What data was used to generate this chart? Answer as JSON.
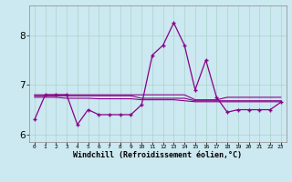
{
  "xlabel": "Windchill (Refroidissement éolien,°C)",
  "bg_color": "#cce8f0",
  "line_color": "#880088",
  "x_values": [
    0,
    1,
    2,
    3,
    4,
    5,
    6,
    7,
    8,
    9,
    10,
    11,
    12,
    13,
    14,
    15,
    16,
    17,
    18,
    19,
    20,
    21,
    22,
    23
  ],
  "y_main": [
    6.3,
    6.8,
    6.8,
    6.8,
    6.2,
    6.5,
    6.4,
    6.4,
    6.4,
    6.4,
    6.6,
    7.6,
    7.8,
    8.25,
    7.8,
    6.9,
    7.5,
    6.75,
    6.45,
    6.5,
    6.5,
    6.5,
    6.5,
    6.65
  ],
  "y_trend1": [
    6.8,
    6.8,
    6.8,
    6.8,
    6.8,
    6.8,
    6.8,
    6.8,
    6.8,
    6.8,
    6.8,
    6.8,
    6.8,
    6.8,
    6.8,
    6.7,
    6.7,
    6.7,
    6.75,
    6.75,
    6.75,
    6.75,
    6.75,
    6.75
  ],
  "y_trend2": [
    6.78,
    6.78,
    6.78,
    6.78,
    6.78,
    6.78,
    6.78,
    6.78,
    6.78,
    6.78,
    6.73,
    6.73,
    6.73,
    6.73,
    6.73,
    6.68,
    6.68,
    6.68,
    6.68,
    6.68,
    6.68,
    6.68,
    6.68,
    6.68
  ],
  "y_trend3": [
    6.75,
    6.75,
    6.75,
    6.73,
    6.73,
    6.73,
    6.72,
    6.72,
    6.72,
    6.72,
    6.7,
    6.7,
    6.7,
    6.7,
    6.68,
    6.66,
    6.66,
    6.66,
    6.66,
    6.66,
    6.66,
    6.66,
    6.66,
    6.66
  ],
  "ylim": [
    5.85,
    8.6
  ],
  "yticks": [
    6,
    7,
    8
  ],
  "grid_color": "#99ccbb",
  "grid_alpha": 0.7
}
